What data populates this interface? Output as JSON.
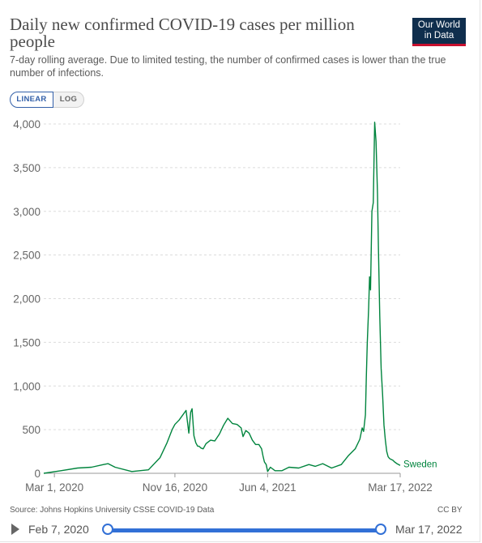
{
  "header": {
    "title": "Daily new confirmed COVID-19 cases per million people",
    "subtitle": "7-day rolling average. Due to limited testing, the number of confirmed cases is lower than the true number of infections.",
    "logo_line1": "Our World",
    "logo_line2": "in Data"
  },
  "controls": {
    "linear_label": "LINEAR",
    "log_label": "LOG",
    "active_scale": "linear"
  },
  "footer": {
    "source": "Source: Johns Hopkins University CSSE COVID-19 Data",
    "license": "CC BY"
  },
  "timeline": {
    "start_label": "Feb 7, 2020",
    "end_label": "Mar 17, 2022"
  },
  "colors": {
    "series": "#00843d",
    "accent": "#3270d6",
    "logo_bg": "#0f2e4d",
    "logo_stripe": "#c8102e"
  },
  "chart_data": {
    "type": "line",
    "title": "Daily new confirmed COVID-19 cases per million people",
    "xlabel": "",
    "ylabel": "",
    "ylim": [
      0,
      4000
    ],
    "yticks": [
      0,
      500,
      1000,
      1500,
      2000,
      2500,
      3000,
      3500,
      4000
    ],
    "ytick_labels": [
      "0",
      "500",
      "1,000",
      "1,500",
      "2,000",
      "2,500",
      "3,000",
      "3,500",
      "4,000"
    ],
    "xlim": [
      "2020-02-07",
      "2022-03-17"
    ],
    "xticks": [
      "2020-03-01",
      "2020-11-16",
      "2021-06-04",
      "2022-03-17"
    ],
    "xtick_labels": [
      "Mar 1, 2020",
      "Nov 16, 2020",
      "Jun 4, 2021",
      "Mar 17, 2022"
    ],
    "grid": "horizontal-dashed",
    "series": [
      {
        "name": "Sweden",
        "x": [
          "2020-02-07",
          "2020-03-15",
          "2020-04-20",
          "2020-05-20",
          "2020-06-15",
          "2020-06-25",
          "2020-07-10",
          "2020-08-15",
          "2020-09-20",
          "2020-10-15",
          "2020-10-30",
          "2020-11-10",
          "2020-11-16",
          "2020-11-25",
          "2020-12-10",
          "2020-12-16",
          "2020-12-20",
          "2020-12-23",
          "2020-12-27",
          "2020-12-31",
          "2021-01-04",
          "2021-01-07",
          "2021-01-11",
          "2021-01-16",
          "2021-01-22",
          "2021-02-01",
          "2021-02-10",
          "2021-02-20",
          "2021-03-01",
          "2021-03-10",
          "2021-03-20",
          "2021-03-30",
          "2021-04-08",
          "2021-04-12",
          "2021-04-18",
          "2021-04-25",
          "2021-05-02",
          "2021-05-09",
          "2021-05-16",
          "2021-05-22",
          "2021-05-25",
          "2021-05-28",
          "2021-06-01",
          "2021-06-04",
          "2021-06-10",
          "2021-06-20",
          "2021-07-05",
          "2021-07-20",
          "2021-08-10",
          "2021-09-01",
          "2021-09-15",
          "2021-10-01",
          "2021-10-20",
          "2021-11-10",
          "2021-11-25",
          "2021-12-10",
          "2021-12-20",
          "2021-12-25",
          "2021-12-28",
          "2022-01-01",
          "2022-01-03",
          "2022-01-05",
          "2022-01-08",
          "2022-01-10",
          "2022-01-12",
          "2022-01-15",
          "2022-01-18",
          "2022-01-21",
          "2022-01-24",
          "2022-01-27",
          "2022-01-29",
          "2022-02-01",
          "2022-02-04",
          "2022-02-07",
          "2022-02-10",
          "2022-02-13",
          "2022-02-16",
          "2022-02-19",
          "2022-02-22",
          "2022-02-25",
          "2022-03-01",
          "2022-03-05",
          "2022-03-10",
          "2022-03-17"
        ],
        "y": [
          0,
          30,
          60,
          70,
          100,
          110,
          70,
          20,
          40,
          180,
          350,
          500,
          560,
          610,
          720,
          460,
          700,
          740,
          430,
          350,
          310,
          310,
          290,
          280,
          340,
          380,
          370,
          450,
          550,
          630,
          570,
          560,
          520,
          420,
          490,
          460,
          380,
          330,
          330,
          280,
          200,
          130,
          100,
          20,
          70,
          30,
          30,
          70,
          60,
          100,
          80,
          110,
          60,
          100,
          200,
          280,
          390,
          520,
          480,
          670,
          1100,
          1500,
          1900,
          2250,
          2100,
          3000,
          3100,
          4020,
          3800,
          3200,
          2600,
          1800,
          1200,
          900,
          550,
          380,
          250,
          190,
          170,
          160,
          150,
          130,
          110,
          90
        ]
      }
    ]
  }
}
